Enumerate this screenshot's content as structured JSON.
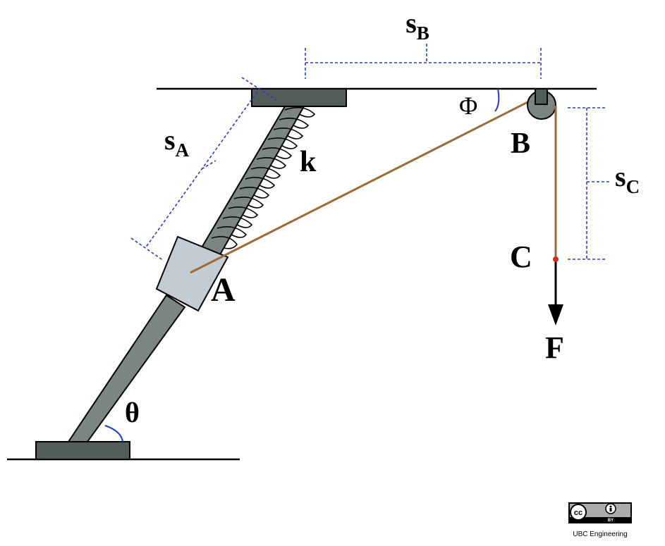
{
  "labels": {
    "sA_main": "s",
    "sA_sub": "A",
    "sB_main": "s",
    "sB_sub": "B",
    "sC_main": "s",
    "sC_sub": "C",
    "k": "k",
    "phi": "Φ",
    "theta": "θ",
    "A": "A",
    "B": "B",
    "C": "C",
    "F": "F"
  },
  "license": {
    "cc": "cc",
    "by": "BY",
    "credit": "UBC Engineering"
  },
  "colors": {
    "ground": "#000000",
    "block": "#525c5a",
    "rod": "#7b8584",
    "slider": "#c3ccd3",
    "rope": "#9b6a38",
    "dimension": "#2a3db0",
    "anglearc": "#1f3fbf",
    "point_c": "#e0261d",
    "force": "#000000"
  }
}
